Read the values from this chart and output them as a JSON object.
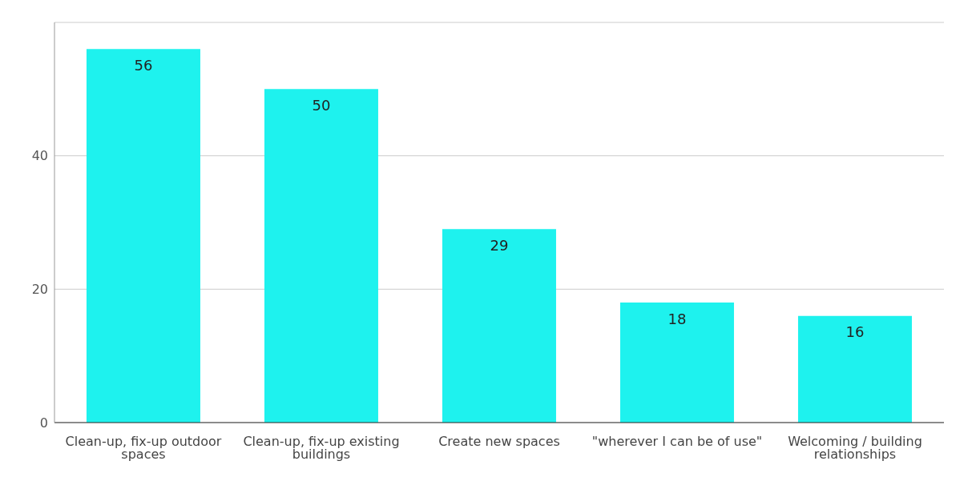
{
  "chart_data": {
    "type": "bar",
    "categories": [
      "Clean-up, fix-up outdoor spaces",
      "Clean-up, fix-up existing buildings",
      "Create new spaces",
      "\"wherever I can be of use\"",
      "Welcoming / building relationships"
    ],
    "values": [
      56,
      50,
      29,
      18,
      16
    ],
    "color": "#1ef2ee",
    "ylim": [
      0,
      60
    ],
    "yticks": [
      0,
      20,
      40
    ],
    "grid": "y",
    "data_labels": true
  }
}
